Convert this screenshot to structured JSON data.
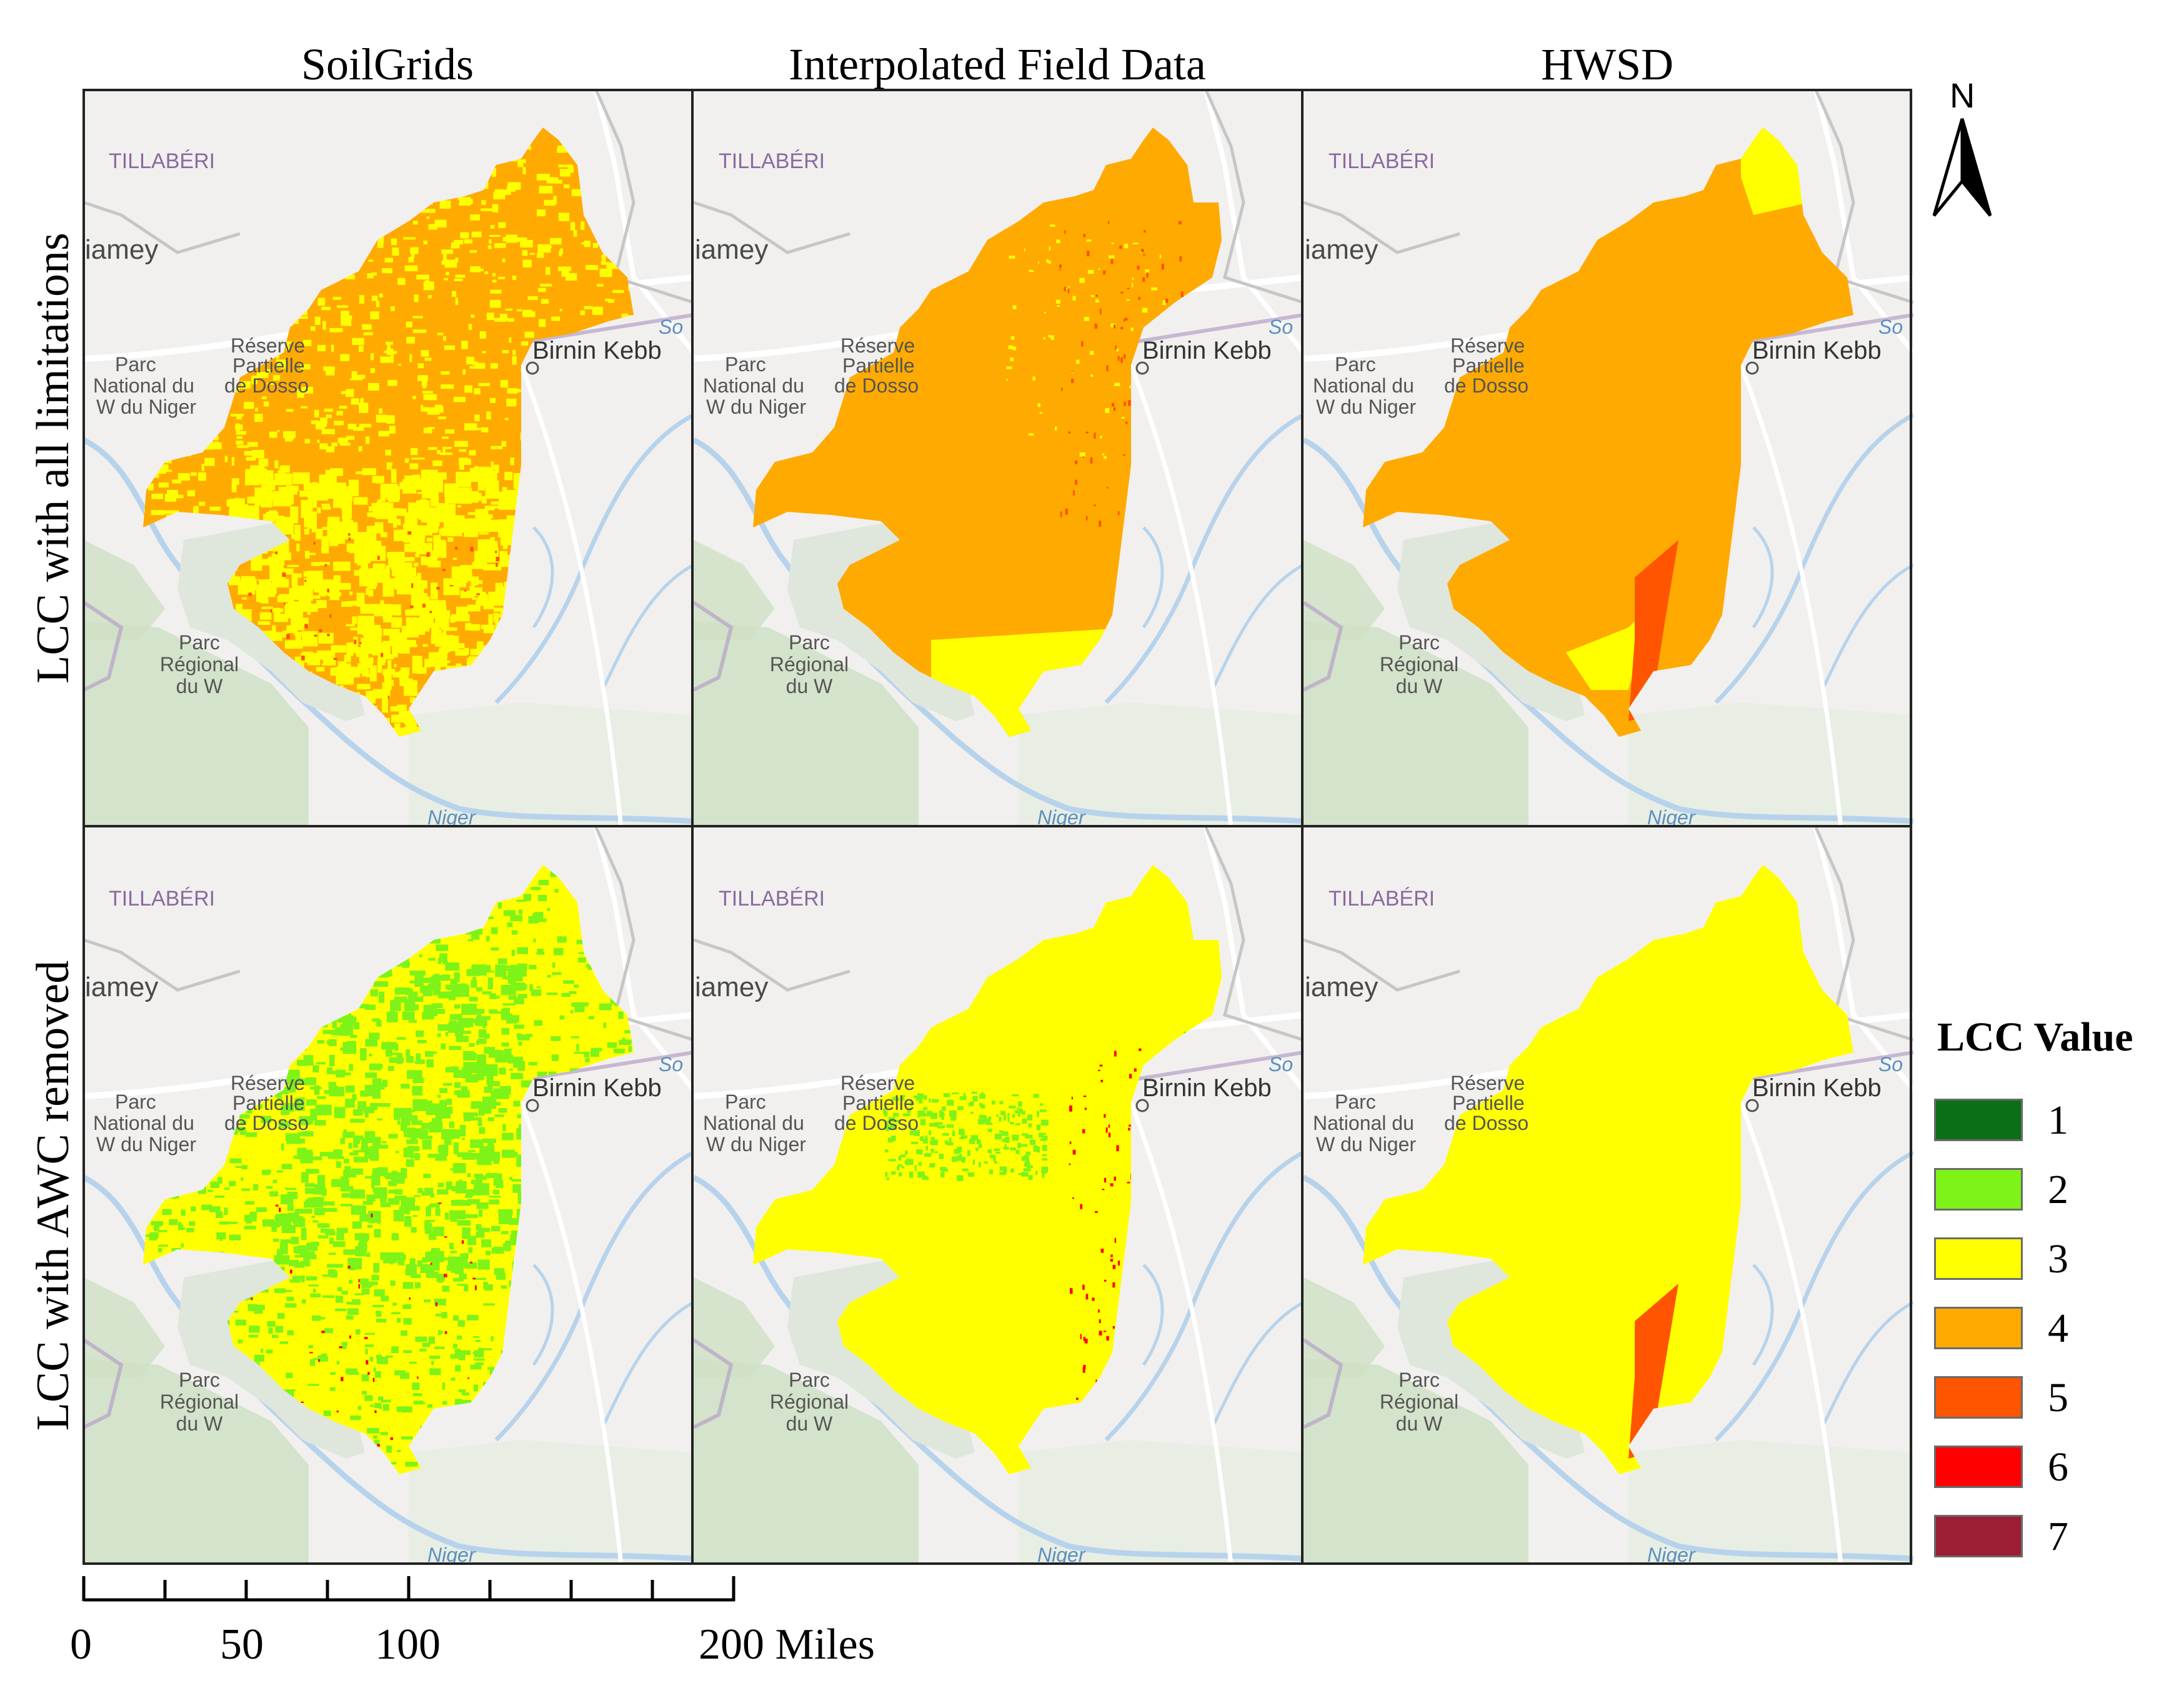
{
  "columns": [
    "SoilGrids",
    "Interpolated Field Data",
    "HWSD"
  ],
  "rows": [
    "LCC with all limitations",
    "LCC with AWC removed"
  ],
  "basemap_labels": {
    "region": "TILLABÉRI",
    "city_west": "iamey",
    "city_east": "Birnin Kebb",
    "river_niger": "Niger",
    "river_sokoto": "So",
    "park_w_line1": "Parc",
    "park_w_line2": "National du",
    "park_w_line3": "W du Niger",
    "reserve_line1": "Réserve",
    "reserve_line2": "Partielle",
    "reserve_line3": "de Dosso",
    "regional_line1": "Parc",
    "regional_line2": "Régional",
    "regional_line3": "du W"
  },
  "legend": {
    "title": "LCC Value",
    "items": [
      {
        "label": "1",
        "color": "#0b6f18"
      },
      {
        "label": "2",
        "color": "#7ef317"
      },
      {
        "label": "3",
        "color": "#ffff00"
      },
      {
        "label": "4",
        "color": "#ffaa00"
      },
      {
        "label": "5",
        "color": "#ff5500"
      },
      {
        "label": "6",
        "color": "#ff0000"
      },
      {
        "label": "7",
        "color": "#9b1e34"
      }
    ]
  },
  "north_arrow": "N",
  "scale_bar": {
    "labels": [
      "0",
      "50",
      "100",
      "200 Miles"
    ]
  },
  "colors": {
    "basemap": "#f1f0ee",
    "park_green": "#cfe0c4",
    "reserve": "#dfe6dc",
    "river": "#b7d3ec",
    "boundary": "#b8a4c8",
    "road": "#ffffff"
  }
}
